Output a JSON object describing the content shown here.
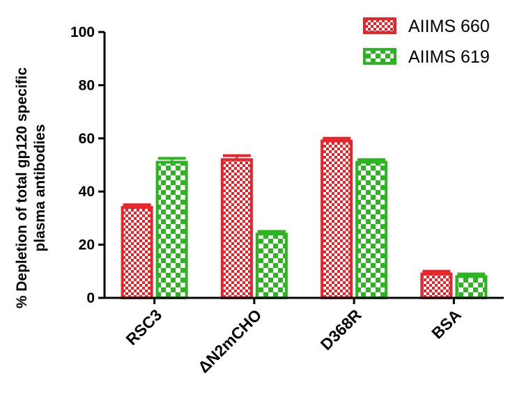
{
  "chart_data": {
    "type": "bar",
    "categories": [
      "RSC3",
      "ΔN2mCHO",
      "D368R",
      "BSA"
    ],
    "series": [
      {
        "name": "AIIMS 660",
        "values": [
          34,
          52,
          59,
          9
        ],
        "errors": [
          1.0,
          1.5,
          1.0,
          1.0
        ],
        "color": "#e8242b",
        "pattern": "small-check"
      },
      {
        "name": "AIIMS 619",
        "values": [
          51,
          24,
          51,
          8
        ],
        "errors": [
          1.5,
          1.0,
          1.0,
          1.0
        ],
        "color": "#2cb520",
        "pattern": "large-check"
      }
    ],
    "ylabel_lines": [
      "% Depletion of total gp120 specific",
      "plasma antibodies"
    ],
    "xlabel": "",
    "ylim": [
      0,
      100
    ],
    "yticks": [
      0,
      20,
      40,
      60,
      80,
      100
    ],
    "legend_position": "top-right",
    "grid": false
  }
}
